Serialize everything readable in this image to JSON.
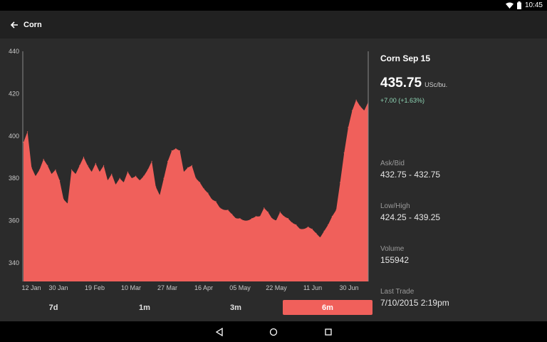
{
  "status_bar": {
    "time": "10:45",
    "icons": [
      "wifi-icon",
      "battery-icon"
    ]
  },
  "app_bar": {
    "title": "Corn",
    "back_icon": "arrow-back-icon"
  },
  "colors": {
    "accent": "#f0605b",
    "positive": "#8fd6b5",
    "background": "#2b2b2b",
    "appbar": "#212121"
  },
  "info": {
    "contract": "Corn Sep 15",
    "price": "435.75",
    "unit": "USc/bu.",
    "change": "+7.00 (+1.63%)",
    "stats": [
      {
        "label": "Ask/Bid",
        "value": "432.75 - 432.75"
      },
      {
        "label": "Low/High",
        "value": "424.25 - 439.25"
      },
      {
        "label": "Volume",
        "value": "155942"
      },
      {
        "label": "Last Trade",
        "value": "7/10/2015 2:19pm"
      }
    ]
  },
  "range_tabs": [
    {
      "label": "7d",
      "active": false
    },
    {
      "label": "1m",
      "active": false
    },
    {
      "label": "3m",
      "active": false
    },
    {
      "label": "6m",
      "active": true
    }
  ],
  "nav": {
    "buttons": [
      "back-triangle-icon",
      "home-circle-icon",
      "recents-square-icon"
    ]
  },
  "chart_data": {
    "type": "area",
    "title": "",
    "xlabel": "",
    "ylabel": "",
    "ylim": [
      332,
      440
    ],
    "y_ticks": [
      340,
      360,
      380,
      400,
      420,
      440
    ],
    "x_tick_labels": [
      "12 Jan",
      "30 Jan",
      "19 Feb",
      "10 Mar",
      "27 Mar",
      "16 Apr",
      "05 May",
      "22 May",
      "11 Jun",
      "30 Jun"
    ],
    "x_tick_index": [
      0,
      12,
      26,
      40,
      52,
      66,
      80,
      92,
      106,
      118
    ],
    "grid": false,
    "series": [
      {
        "values": [
          397,
          402,
          385,
          381,
          384,
          389,
          386,
          382,
          384,
          379,
          370,
          368,
          384,
          382,
          386,
          390,
          386,
          383,
          387,
          383,
          386,
          379,
          382,
          377,
          380,
          378,
          383,
          380,
          381,
          379,
          381,
          384,
          388,
          376,
          372,
          380,
          388,
          393,
          394,
          393,
          383,
          385,
          386,
          380,
          378,
          375,
          373,
          370,
          369,
          366,
          365,
          365,
          363,
          361,
          361,
          360,
          360,
          361,
          362,
          362,
          366,
          364,
          361,
          360,
          364,
          362,
          361,
          359,
          358,
          356,
          356,
          357,
          356,
          354,
          352,
          355,
          358,
          362,
          365,
          378,
          392,
          404,
          412,
          417,
          414,
          412,
          416
        ]
      }
    ]
  }
}
